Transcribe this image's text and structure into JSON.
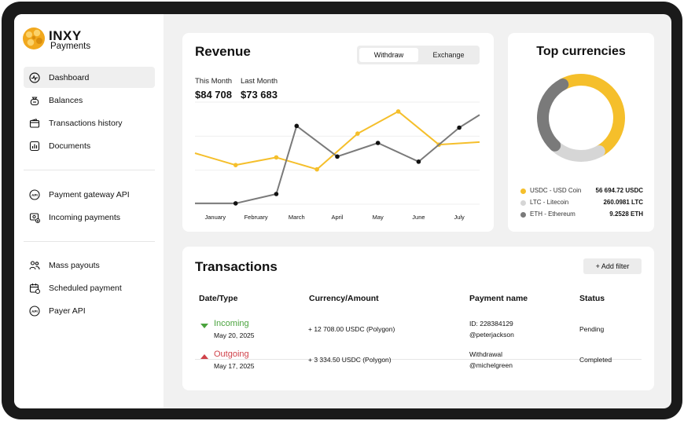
{
  "brand": {
    "name": "INXY",
    "sub": "Payments"
  },
  "sidebar": {
    "groups": [
      [
        {
          "label": "Dashboard",
          "icon": "pulse-icon",
          "active": true
        },
        {
          "label": "Balances",
          "icon": "money-bag-icon"
        },
        {
          "label": "Transactions history",
          "icon": "wallet-icon"
        },
        {
          "label": "Documents",
          "icon": "bar-chart-doc-icon"
        }
      ],
      [
        {
          "label": "Payment gateway API",
          "icon": "api-icon"
        },
        {
          "label": "Incoming payments",
          "icon": "incoming-payment-icon"
        }
      ],
      [
        {
          "label": "Mass payouts",
          "icon": "people-icon"
        },
        {
          "label": "Scheduled payment",
          "icon": "calendar-icon"
        },
        {
          "label": "Payer API",
          "icon": "api-icon"
        }
      ]
    ]
  },
  "revenue": {
    "title": "Revenue",
    "tabs": [
      "Withdraw",
      "Exchange"
    ],
    "active_tab": "Withdraw",
    "this_month_label": "This Month",
    "last_month_label": "Last Month",
    "this_month_value": "$84 708",
    "last_month_value": "$73 683"
  },
  "chart_data": {
    "type": "line",
    "categories": [
      "January",
      "February",
      "March",
      "April",
      "May",
      "June",
      "July"
    ],
    "series": [
      {
        "color": "#f5bf2b",
        "values": [
          60,
          46,
          55,
          41,
          83,
          109,
          70,
          73
        ],
        "x": [
          0,
          0.5,
          1.5,
          2.5,
          3.5,
          4.5,
          5.5,
          6.5
        ]
      },
      {
        "color": "#7a7a7a",
        "values": [
          1,
          1,
          12,
          92,
          56,
          72,
          50,
          90,
          105
        ],
        "x": [
          0,
          0.5,
          1.5,
          2.0,
          3.0,
          4.0,
          5.0,
          6.0,
          6.5
        ]
      }
    ],
    "ylim": [
      0,
      120
    ],
    "grid": true,
    "legend": "none"
  },
  "top_currencies": {
    "title": "Top currencies",
    "items": [
      {
        "name": "USDC - USD Coin",
        "amount": "56 694.72 USDC",
        "color": "#f5bf2b",
        "share": 0.5
      },
      {
        "name": "LTC - Litecoin",
        "amount": "260.0981 LTC",
        "color": "#d6d6d6",
        "share": 0.2
      },
      {
        "name": "ETH - Ethereum",
        "amount": "9.2528 ETH",
        "color": "#7a7a7a",
        "share": 0.3
      }
    ]
  },
  "transactions": {
    "title": "Transactions",
    "add_filter": "+ Add filter",
    "columns": [
      "Date/Type",
      "Currency/Amount",
      "Payment name",
      "Status"
    ],
    "rows": [
      {
        "type": "Incoming",
        "date": "May 20, 2025",
        "amount": "+ 12 708.00 USDC (Polygon)",
        "name1": "ID: 228384129",
        "name2": "@peterjackson",
        "status": "Pending",
        "color": "#4aa33d"
      },
      {
        "type": "Outgoing",
        "date": "May 17, 2025",
        "amount": "+ 3 334.50 USDC (Polygon)",
        "name1": "Withdrawal",
        "name2": "@michelgreen",
        "status": "Completed",
        "color": "#d0424a"
      }
    ]
  }
}
